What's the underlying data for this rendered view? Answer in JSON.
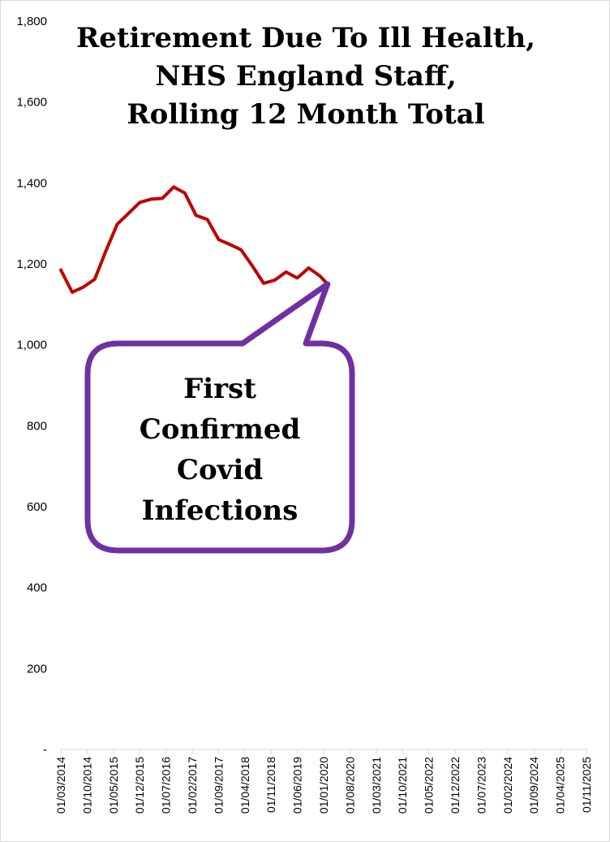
{
  "chart_data": {
    "type": "line",
    "title_lines": [
      "Retirement Due To Ill Health,",
      "NHS England Staff,",
      "Rolling 12 Month Total"
    ],
    "xlabel": "",
    "ylabel": "",
    "ylim": [
      0,
      1800
    ],
    "y_ticks": [
      {
        "value": 0,
        "label": "-"
      },
      {
        "value": 200,
        "label": "200"
      },
      {
        "value": 400,
        "label": "400"
      },
      {
        "value": 600,
        "label": "600"
      },
      {
        "value": 800,
        "label": "800"
      },
      {
        "value": 1000,
        "label": "1,000"
      },
      {
        "value": 1200,
        "label": "1,200"
      },
      {
        "value": 1400,
        "label": "1,400"
      },
      {
        "value": 1600,
        "label": "1,600"
      },
      {
        "value": 1800,
        "label": "1,800"
      }
    ],
    "x_range": [
      "2014-03-01",
      "2025-11-01"
    ],
    "x_tick_labels": [
      "01/03/2014",
      "01/10/2014",
      "01/05/2015",
      "01/12/2015",
      "01/07/2016",
      "01/02/2017",
      "01/09/2017",
      "01/04/2018",
      "01/11/2018",
      "01/06/2019",
      "01/01/2020",
      "01/08/2020",
      "01/03/2021",
      "01/10/2021",
      "01/05/2022",
      "01/12/2022",
      "01/07/2023",
      "01/02/2024",
      "01/09/2024",
      "01/04/2025",
      "01/11/2025"
    ],
    "grid": false,
    "series": [
      {
        "color": "#c00000",
        "points": [
          {
            "x": "2014-03-01",
            "y": 1185
          },
          {
            "x": "2014-06-01",
            "y": 1130
          },
          {
            "x": "2014-09-01",
            "y": 1143
          },
          {
            "x": "2014-12-01",
            "y": 1162
          },
          {
            "x": "2015-03-01",
            "y": 1232
          },
          {
            "x": "2015-06-01",
            "y": 1298
          },
          {
            "x": "2015-09-01",
            "y": 1325
          },
          {
            "x": "2015-12-01",
            "y": 1352
          },
          {
            "x": "2016-03-01",
            "y": 1360
          },
          {
            "x": "2016-06-01",
            "y": 1362
          },
          {
            "x": "2016-09-01",
            "y": 1390
          },
          {
            "x": "2016-12-01",
            "y": 1375
          },
          {
            "x": "2017-03-01",
            "y": 1320
          },
          {
            "x": "2017-06-01",
            "y": 1310
          },
          {
            "x": "2017-09-01",
            "y": 1260
          },
          {
            "x": "2017-12-01",
            "y": 1248
          },
          {
            "x": "2018-03-01",
            "y": 1235
          },
          {
            "x": "2018-06-01",
            "y": 1195
          },
          {
            "x": "2018-09-01",
            "y": 1152
          },
          {
            "x": "2018-12-01",
            "y": 1160
          },
          {
            "x": "2019-03-01",
            "y": 1180
          },
          {
            "x": "2019-06-01",
            "y": 1165
          },
          {
            "x": "2019-09-01",
            "y": 1190
          },
          {
            "x": "2019-12-01",
            "y": 1170
          },
          {
            "x": "2020-02-01",
            "y": 1150
          }
        ]
      }
    ],
    "annotation": {
      "text_lines": [
        "First",
        "Confirmed",
        "Covid",
        "Infections"
      ],
      "border_color": "#7030a0",
      "points_to": {
        "x": "2020-02-01",
        "y": 1150
      }
    }
  }
}
